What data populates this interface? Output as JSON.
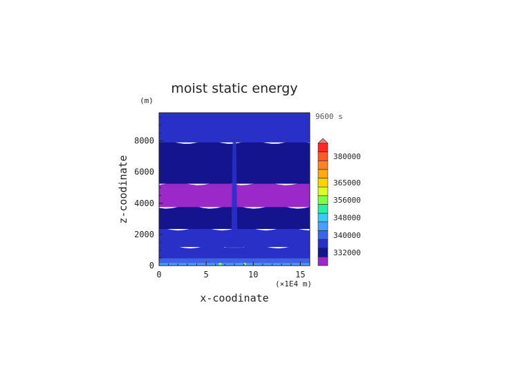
{
  "chart_data": {
    "type": "heatmap",
    "title": "moist static energy",
    "time_label": "9600 s",
    "xlabel": "x-coodinate",
    "x_unit": "(×1E4 m)",
    "ylabel": "z-coodinate",
    "y_unit": "(m)",
    "xlim": [
      0,
      16
    ],
    "ylim": [
      0,
      9800
    ],
    "x_ticks": [
      0,
      5,
      10,
      15
    ],
    "y_ticks": [
      0,
      2000,
      4000,
      6000,
      8000
    ],
    "colorbar": {
      "levels": [
        328000,
        332000,
        336000,
        340000,
        344000,
        348000,
        352000,
        356000,
        360000,
        365000,
        370000,
        375000,
        380000,
        385000,
        390000
      ],
      "labels": [
        "332000",
        "340000",
        "348000",
        "356000",
        "365000",
        "380000"
      ],
      "colors": {
        "purple": "#9b28c8",
        "dark_navy": "#14148c",
        "navy": "#2830c8",
        "blue": "#3c64e6",
        "light_blue": "#46a0ff",
        "sky": "#3cc8f0",
        "cyan_green": "#28f0a0",
        "green": "#80ff40",
        "yellow_green": "#d8ff28",
        "yellow": "#ffd200",
        "orange_yellow": "#ffaa14",
        "orange": "#ff8228",
        "red_orange": "#ff5a28",
        "red": "#ff2828",
        "pink": "#ff7878"
      }
    },
    "bands_z_m": [
      {
        "from": 0,
        "to": 150,
        "value": 346000
      },
      {
        "from": 150,
        "to": 450,
        "value": 342000
      },
      {
        "from": 450,
        "to": 1200,
        "value": 338000
      },
      {
        "from": 1200,
        "to": 2350,
        "value": 336000
      },
      {
        "from": 2350,
        "to": 3750,
        "value": 334000
      },
      {
        "from": 3750,
        "to": 5250,
        "value": 330000
      },
      {
        "from": 5250,
        "to": 7900,
        "value": 334000
      },
      {
        "from": 7900,
        "to": 9800,
        "value": 336000
      }
    ],
    "plume": {
      "x_center": 8,
      "width": 0.35,
      "value": 336000
    }
  }
}
